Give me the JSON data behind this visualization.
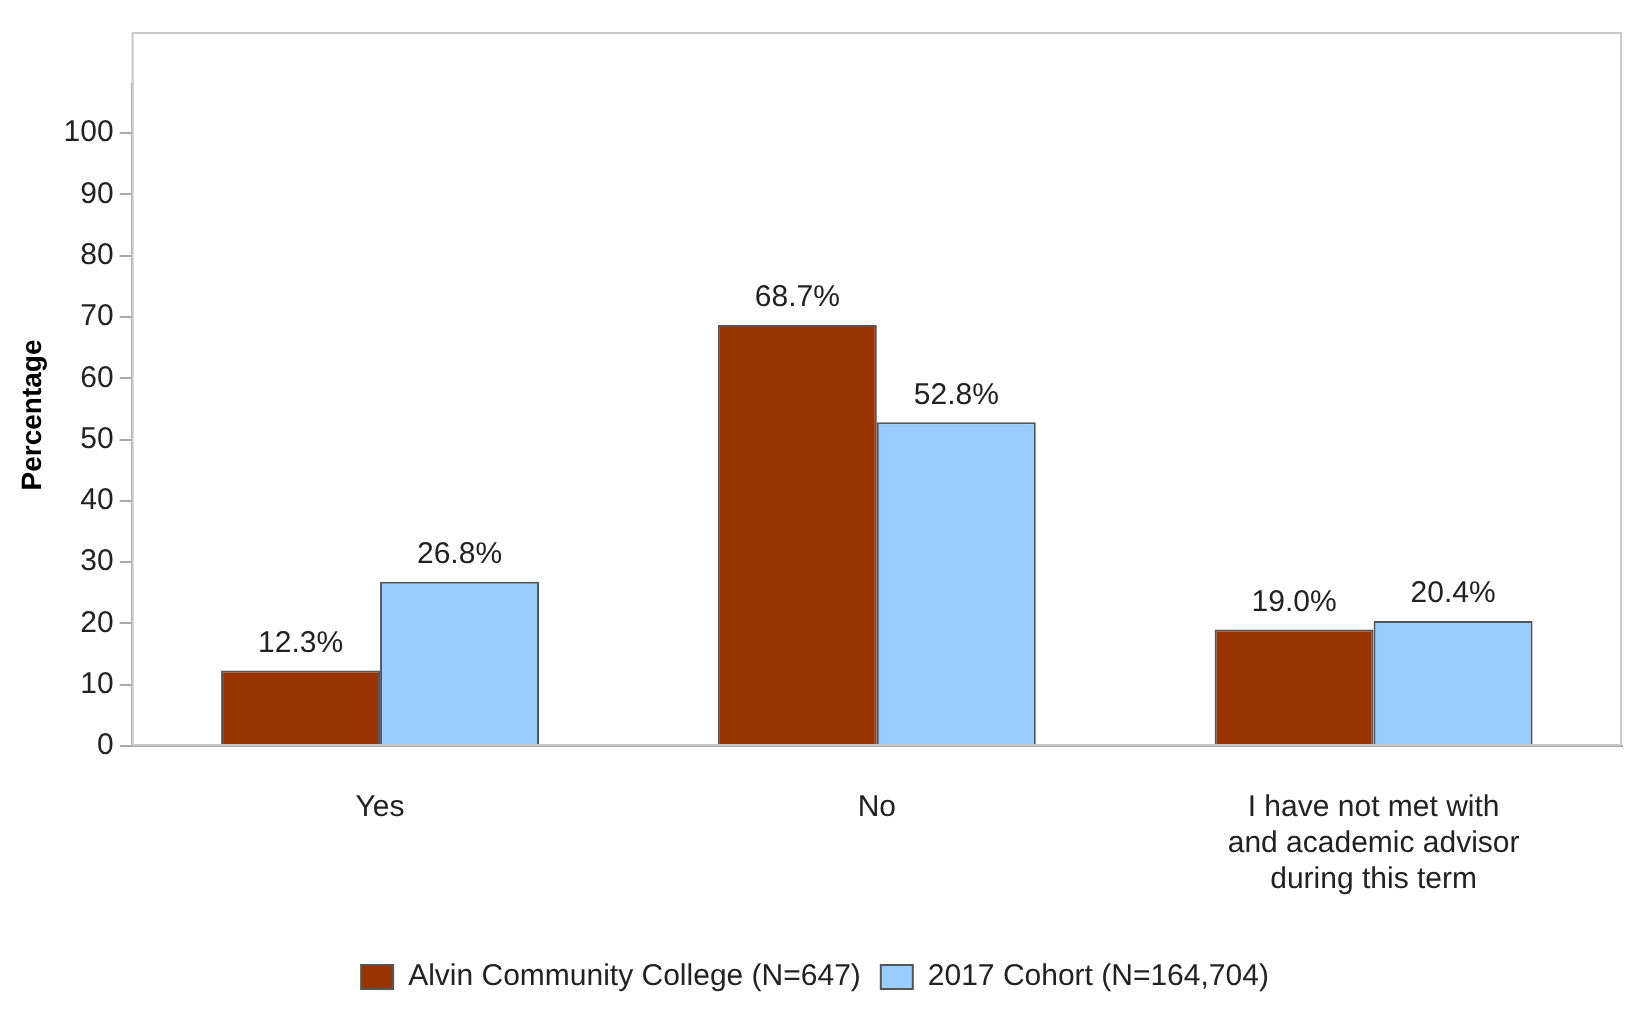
{
  "chart_data": {
    "type": "bar",
    "ylabel": "Percentage",
    "categories": [
      "Yes",
      "No",
      "I have not met with and academic advisor during this term"
    ],
    "series": [
      {
        "name": "Alvin Community College (N=647)",
        "color": "#993300",
        "values": [
          12.3,
          68.7,
          19.0
        ],
        "value_labels": [
          "12.3%",
          "68.7%",
          "19.0%"
        ]
      },
      {
        "name": "2017 Cohort (N=164,704)",
        "color": "#99ccff",
        "values": [
          26.8,
          52.8,
          20.4
        ],
        "value_labels": [
          "26.8%",
          "52.8%",
          "20.4%"
        ]
      }
    ],
    "ylim": [
      0,
      108
    ],
    "yticks": [
      0,
      10,
      20,
      30,
      40,
      50,
      60,
      70,
      80,
      90,
      100
    ],
    "grid": false,
    "legend": "bottom"
  }
}
